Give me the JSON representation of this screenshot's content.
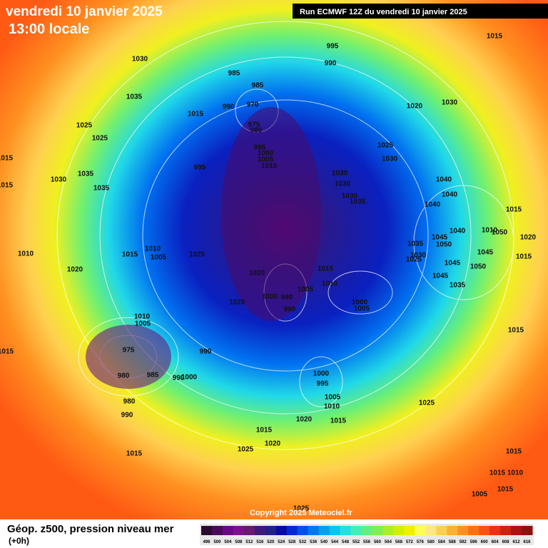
{
  "header": {
    "title": "vendredi 10 janvier 2025",
    "time": "13:00 locale",
    "run": "Run ECMWF 12Z du vendredi 10 janvier 2025"
  },
  "footer": {
    "title": "Géop. z500, pression niveau mer",
    "step": "(+0h)",
    "copyright": "Copyright 2025 Meteociel.fr"
  },
  "colorbar": {
    "labels": [
      "496",
      "500",
      "504",
      "508",
      "512",
      "516",
      "520",
      "524",
      "528",
      "532",
      "536",
      "540",
      "544",
      "548",
      "552",
      "556",
      "560",
      "564",
      "568",
      "572",
      "576",
      "580",
      "584",
      "588",
      "592",
      "596",
      "600",
      "604",
      "608",
      "612",
      "616"
    ],
    "colors": [
      "#2a0a30",
      "#4a0a5a",
      "#6a0a82",
      "#7e1090",
      "#6a1870",
      "#401a78",
      "#22208a",
      "#0a0aa8",
      "#0028d8",
      "#0050f0",
      "#0078f0",
      "#00a0f0",
      "#00c8f0",
      "#20e0e0",
      "#40f0b8",
      "#60f080",
      "#80f050",
      "#a8f020",
      "#d0f000",
      "#f0f000",
      "#ffff50",
      "#ffe880",
      "#ffd050",
      "#ffb030",
      "#ff9020",
      "#ff7010",
      "#ff5010",
      "#f03010",
      "#d02010",
      "#b01010",
      "#901010"
    ]
  },
  "pressure_labels": [
    "1015",
    "995",
    "990",
    "1030",
    "985",
    "985",
    "970",
    "990",
    "1035",
    "1015",
    "975",
    "980",
    "1020",
    "1030",
    "1025",
    "1025",
    "995",
    "1000",
    "1005",
    "1010",
    "1025",
    "1030",
    "995",
    "1015",
    "1035",
    "1030",
    "1035",
    "1030",
    "1030",
    "1030",
    "1035",
    "1040",
    "1040",
    "1040",
    "1015",
    "1015",
    "1040",
    "1010",
    "1050",
    "1045",
    "1050",
    "1020",
    "1035",
    "1030",
    "1025",
    "1010",
    "1015",
    "1010",
    "1005",
    "1025",
    "1045",
    "1015",
    "1045",
    "1050",
    "1020",
    "1020",
    "1015",
    "1045",
    "1035",
    "1010",
    "1005",
    "1000",
    "990",
    "1025",
    "990",
    "1000",
    "1005",
    "1010",
    "1005",
    "1015",
    "1015",
    "975",
    "990",
    "980",
    "985",
    "990",
    "1000",
    "1000",
    "995",
    "1005",
    "1010",
    "980",
    "1025",
    "990",
    "1020",
    "1015",
    "1015",
    "1020",
    "1025",
    "1015",
    "1015",
    "1015",
    "1010",
    "1005",
    "1015",
    "1025"
  ]
}
